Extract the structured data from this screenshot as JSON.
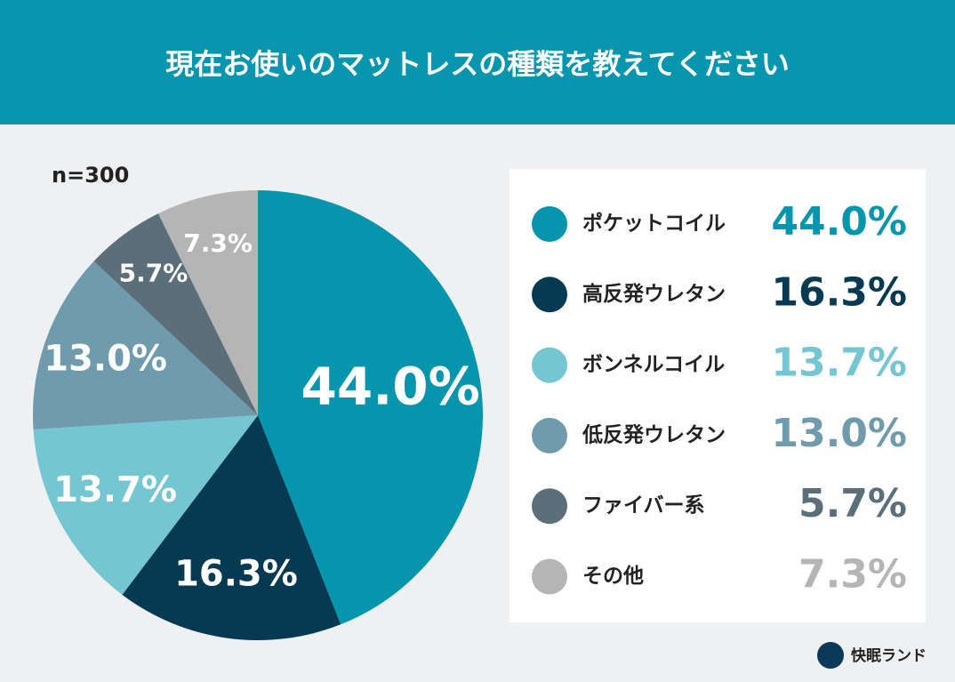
{
  "chart_data": {
    "type": "pie",
    "title": "現在お使いのマットレスの種類を教えてください",
    "subtitle": "n=300",
    "categories": [
      "ポケットコイル",
      "高反発ウレタン",
      "ボンネルコイル",
      "低反発ウレタン",
      "ファイバー系",
      "その他"
    ],
    "values": [
      44.0,
      16.3,
      13.7,
      13.0,
      5.7,
      7.3
    ],
    "value_labels": [
      "44.0%",
      "16.3%",
      "13.7%",
      "13.0%",
      "5.7%",
      "7.3%"
    ],
    "colors": [
      "#0596ae",
      "#063a52",
      "#74c6d3",
      "#6f9bad",
      "#5a6f7a",
      "#b5b5b5"
    ],
    "source": "快眠ランド"
  }
}
